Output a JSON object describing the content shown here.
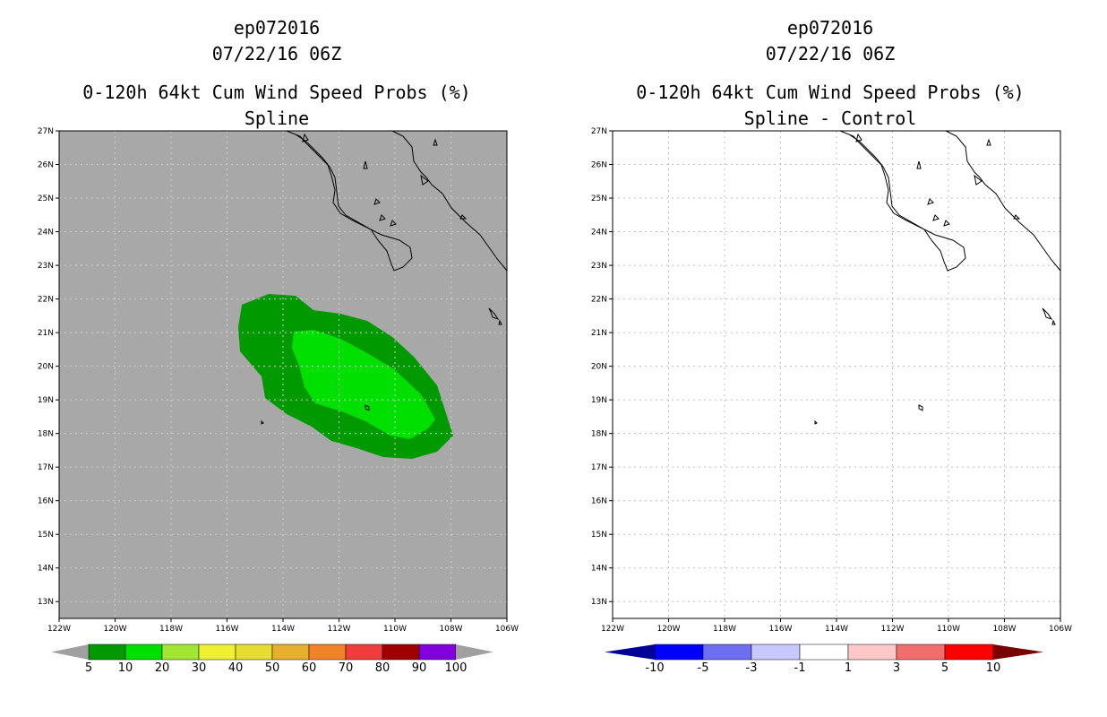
{
  "panels": [
    {
      "storm_id": "ep072016",
      "datetime": "07/22/16 06Z",
      "product": "0-120h 64kt Cum Wind Speed Probs (%)",
      "subtitle": "Spline",
      "field": "probability",
      "colorbar": {
        "labels": [
          "5",
          "10",
          "20",
          "30",
          "40",
          "50",
          "60",
          "70",
          "80",
          "90",
          "100"
        ],
        "colors": [
          "#009a00",
          "#00e000",
          "#a0e632",
          "#f0f032",
          "#e6dc32",
          "#e6af2d",
          "#f08228",
          "#f03c3c",
          "#a00000",
          "#8200dc"
        ],
        "end_color": "#a0a0a0"
      }
    },
    {
      "storm_id": "ep072016",
      "datetime": "07/22/16 06Z",
      "product": "0-120h 64kt Cum Wind Speed Probs (%)",
      "subtitle": "Spline - Control",
      "field": "difference",
      "colorbar": {
        "labels": [
          "-10",
          "-5",
          "-3",
          "-1",
          "1",
          "3",
          "5",
          "10"
        ],
        "colors": [
          "#0000ff",
          "#6e6ef0",
          "#c8c8ff",
          "#ffffff",
          "#ffc8c8",
          "#f06e6e",
          "#ff0000"
        ],
        "left_end_color": "#000096",
        "right_end_color": "#780000"
      }
    }
  ],
  "axes": {
    "lat_labels": [
      "13N",
      "14N",
      "15N",
      "16N",
      "17N",
      "18N",
      "19N",
      "20N",
      "21N",
      "22N",
      "23N",
      "24N",
      "25N",
      "26N",
      "27N"
    ],
    "lon_labels": [
      "122W",
      "120W",
      "118W",
      "116W",
      "114W",
      "112W",
      "110W",
      "108W",
      "106W"
    ],
    "lat_range": [
      12.5,
      27
    ],
    "lon_range": [
      -122,
      -106
    ]
  },
  "colors": {
    "no_data_gray": "#a8a8a8",
    "prob_5_10": "#009a00",
    "prob_10_20": "#00e000",
    "coast": "#000000",
    "grid": "#c8c8c8"
  }
}
